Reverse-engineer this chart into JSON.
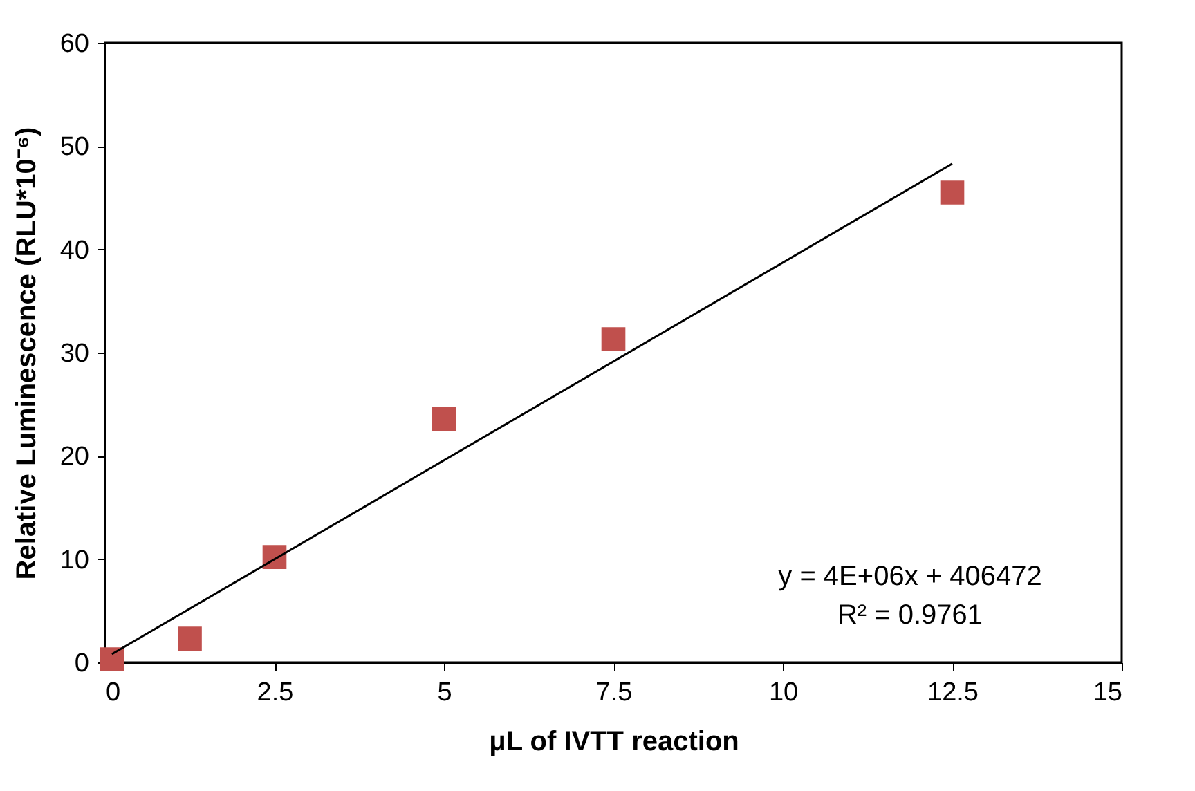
{
  "chart_data": {
    "type": "scatter",
    "xlabel": "μL of IVTT reaction",
    "ylabel": "Relative Luminescence  (RLU*10⁻⁶)",
    "series": [
      {
        "type": "scatter",
        "color": "#c0504d",
        "marker": "square",
        "x": [
          0.1,
          1.25,
          2.5,
          5,
          7.5,
          12.5
        ],
        "values": [
          0.3,
          2.3,
          10.2,
          23.6,
          31.3,
          45.5
        ]
      },
      {
        "type": "line",
        "color": "#000000",
        "x": [
          0.1,
          12.5
        ],
        "values": [
          0.8,
          48.3
        ]
      }
    ],
    "xlim": [
      0,
      15
    ],
    "xticks": [
      0,
      2.5,
      5,
      7.5,
      10,
      12.5,
      15
    ],
    "ylim": [
      0,
      60
    ],
    "yticks": [
      0,
      10,
      20,
      30,
      40,
      50,
      60
    ],
    "grid": false,
    "legend": false,
    "annotations": [
      "y = 4E+06x + 406472",
      "R² = 0.9761"
    ]
  }
}
